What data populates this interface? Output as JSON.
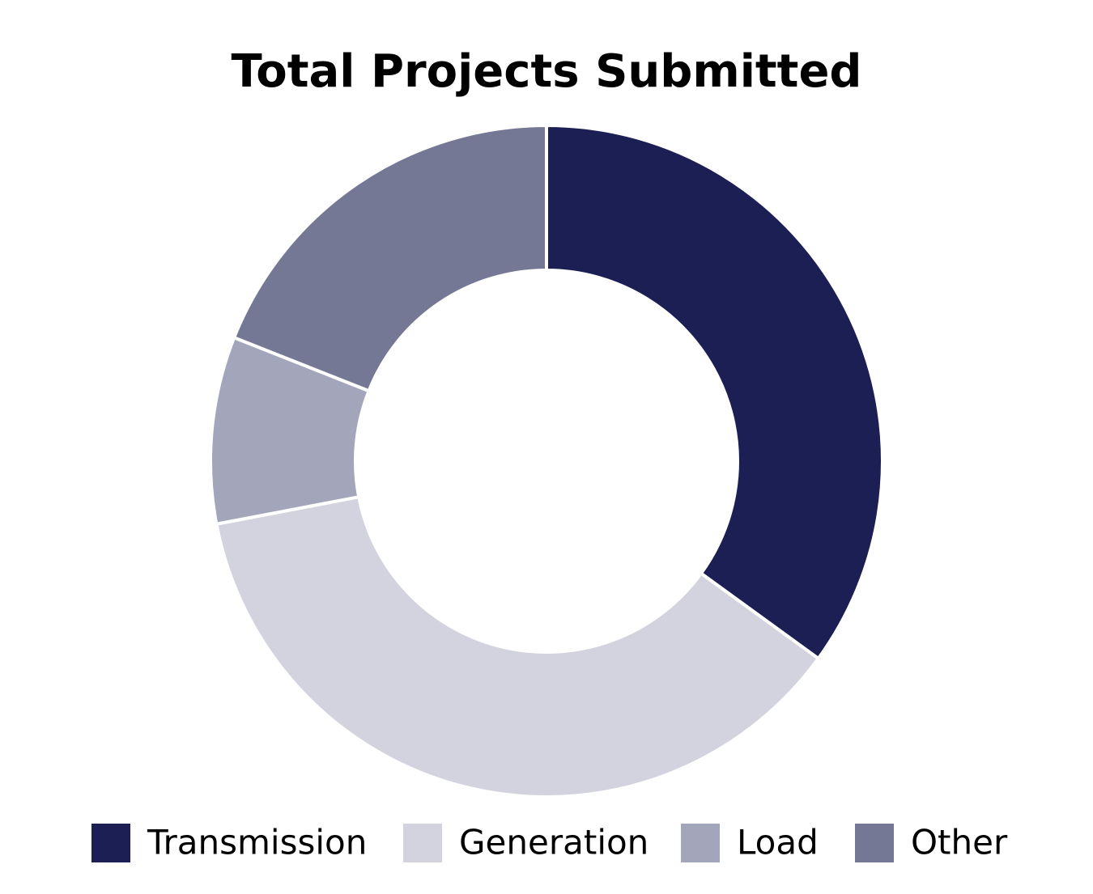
{
  "chart_data": {
    "type": "donut",
    "title": "Total Projects Submitted",
    "categories": [
      "Transmission",
      "Generation",
      "Load",
      "Other"
    ],
    "values": [
      35,
      37,
      9,
      19
    ],
    "colors": [
      "#1b1f53",
      "#d2d3de",
      "#a3a5bb",
      "#757894"
    ],
    "legend": "bottom"
  }
}
